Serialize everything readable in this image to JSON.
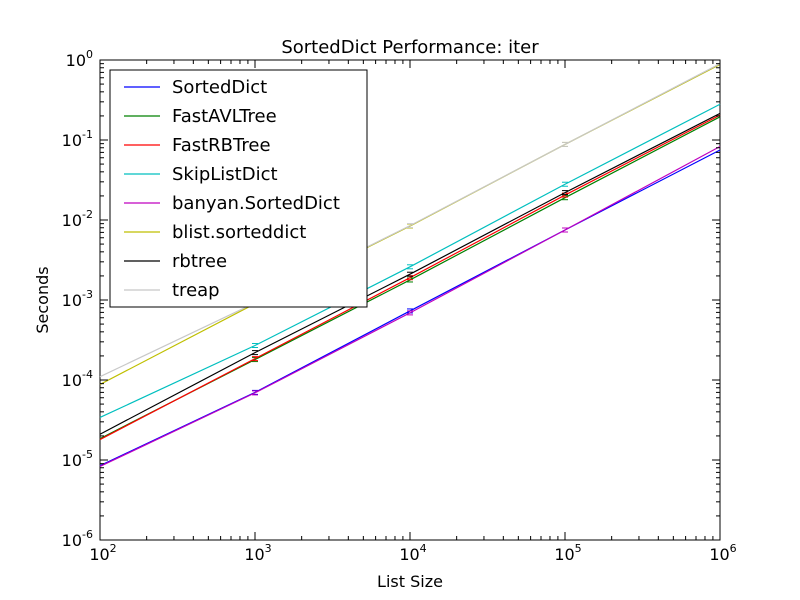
{
  "chart_data": {
    "type": "line",
    "title": "SortedDict Performance: iter",
    "xlabel": "List Size",
    "ylabel": "Seconds",
    "xscale": "log",
    "yscale": "log",
    "xlim": [
      100,
      1000000
    ],
    "ylim": [
      1e-06,
      1
    ],
    "x_ticks": [
      {
        "base": "10",
        "exp": "2"
      },
      {
        "base": "10",
        "exp": "3"
      },
      {
        "base": "10",
        "exp": "4"
      },
      {
        "base": "10",
        "exp": "5"
      },
      {
        "base": "10",
        "exp": "6"
      }
    ],
    "y_ticks": [
      {
        "base": "10",
        "exp": "-6"
      },
      {
        "base": "10",
        "exp": "-5"
      },
      {
        "base": "10",
        "exp": "-4"
      },
      {
        "base": "10",
        "exp": "-3"
      },
      {
        "base": "10",
        "exp": "-2"
      },
      {
        "base": "10",
        "exp": "-1"
      },
      {
        "base": "10",
        "exp": "0"
      }
    ],
    "legend_position": "top-left",
    "grid": false,
    "x": [
      100,
      1000,
      10000,
      100000,
      1000000
    ],
    "series": [
      {
        "name": "SortedDict",
        "color": "#0000ff",
        "values": [
          8.5e-06,
          7e-05,
          0.00073,
          0.0075,
          0.075
        ]
      },
      {
        "name": "FastAVLTree",
        "color": "#008000",
        "values": [
          1.85e-05,
          0.00018,
          0.00178,
          0.019,
          0.195
        ]
      },
      {
        "name": "FastRBTree",
        "color": "#ff0000",
        "values": [
          1.8e-05,
          0.000185,
          0.0019,
          0.0205,
          0.205
        ]
      },
      {
        "name": "SkipListDict",
        "color": "#00bfbf",
        "values": [
          3.4e-05,
          0.00027,
          0.0026,
          0.028,
          0.28
        ]
      },
      {
        "name": "banyan.SortedDict",
        "color": "#bf00bf",
        "values": [
          8.3e-06,
          6.9e-05,
          0.00069,
          0.0075,
          0.083
        ]
      },
      {
        "name": "blist.sorteddict",
        "color": "#bfbf00",
        "values": [
          8.8e-05,
          0.0009,
          0.0084,
          0.088,
          0.88
        ]
      },
      {
        "name": "rbtree",
        "color": "#000000",
        "values": [
          2.1e-05,
          0.00022,
          0.0021,
          0.022,
          0.215
        ]
      },
      {
        "name": "treap",
        "color": "#c8c8c8",
        "values": [
          0.00011,
          0.00092,
          0.0085,
          0.088,
          0.9
        ]
      }
    ]
  }
}
